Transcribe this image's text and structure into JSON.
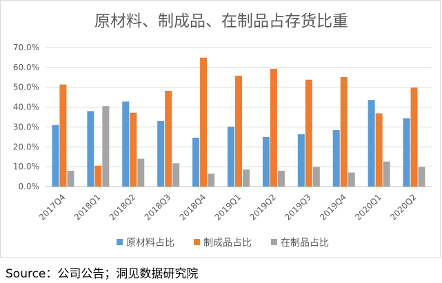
{
  "chart_data": {
    "type": "bar",
    "title": "原材料、制成品、在制品占存货比重",
    "categories": [
      "2017Q4",
      "2018Q1",
      "2018Q2",
      "2018Q3",
      "2018Q4",
      "2019Q1",
      "2019Q2",
      "2019Q3",
      "2019Q4",
      "2020Q1",
      "2020Q2"
    ],
    "series": [
      {
        "name": "原材料占比",
        "color": "#5b9bd5",
        "values": [
          31.0,
          38.0,
          42.8,
          33.0,
          24.6,
          30.2,
          25.0,
          26.4,
          28.4,
          43.6,
          34.4
        ]
      },
      {
        "name": "制成品占比",
        "color": "#ed7d31",
        "values": [
          51.4,
          10.5,
          37.2,
          48.2,
          64.9,
          55.8,
          59.3,
          53.8,
          55.1,
          36.9,
          49.8
        ]
      },
      {
        "name": "在制品占比",
        "color": "#a5a5a5",
        "values": [
          8.0,
          40.5,
          14.0,
          11.7,
          6.5,
          8.6,
          8.0,
          9.9,
          7.1,
          12.6,
          9.9
        ]
      }
    ],
    "ylim": [
      0,
      70
    ],
    "yticks": [
      "0.0%",
      "10.0%",
      "20.0%",
      "30.0%",
      "40.0%",
      "50.0%",
      "60.0%",
      "70.0%"
    ],
    "ytick_values": [
      0,
      10,
      20,
      30,
      40,
      50,
      60,
      70
    ],
    "grid": true,
    "legend": "bottom"
  },
  "source_text": "Source：公司公告；洞见数据研究院"
}
